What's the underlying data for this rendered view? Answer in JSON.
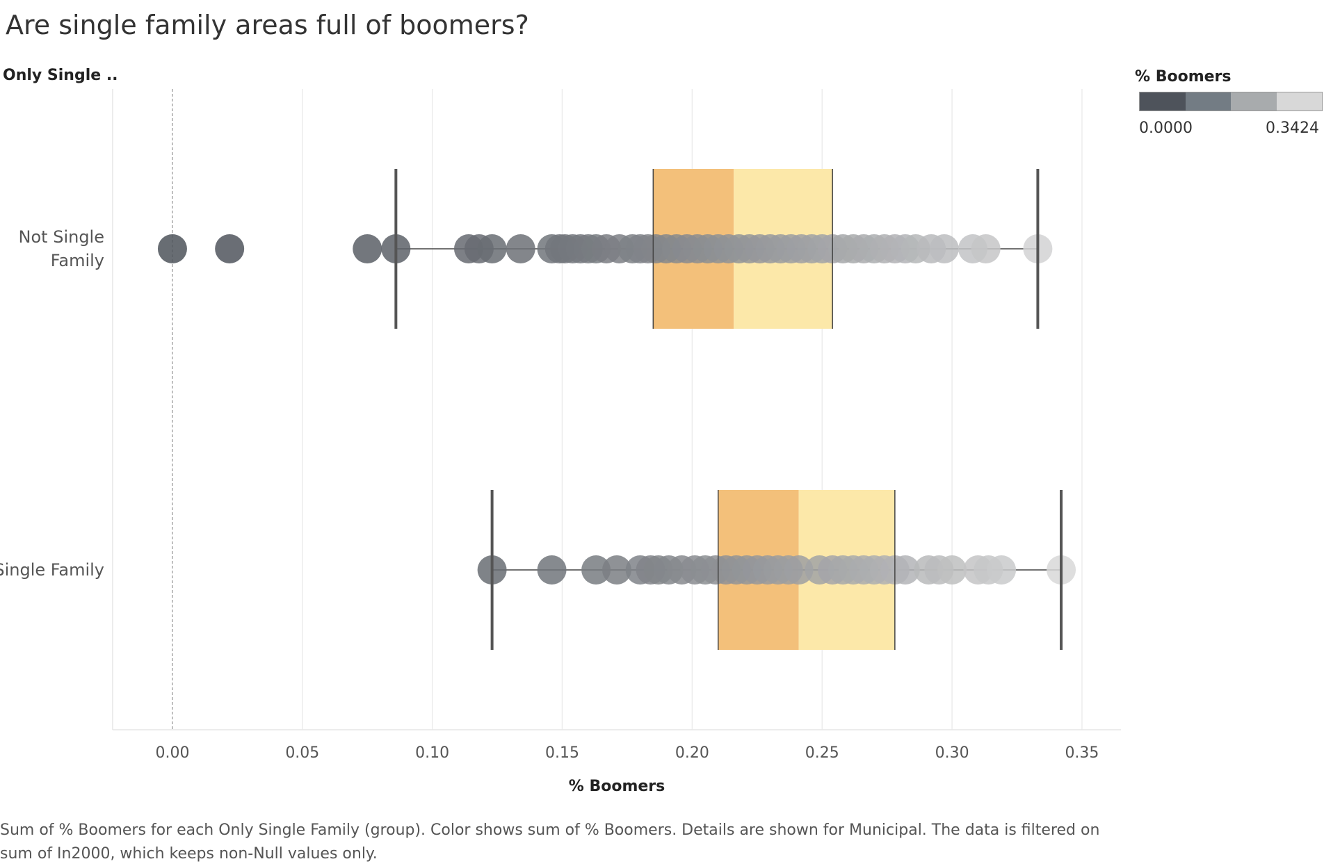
{
  "header": {
    "title": "Are single family areas full of boomers?",
    "row_header": "Only Single .."
  },
  "legend": {
    "title": "% Boomers",
    "min_label": "0.0000",
    "max_label": "0.3424",
    "ramp_colors": [
      "#4e535b",
      "#737c84",
      "#a8abad",
      "#d8d8d8"
    ]
  },
  "caption": "Sum of % Boomers for each Only Single Family (group).  Color shows sum of % Boomers.  Details are shown for Municipal. The data is filtered on sum of In2000, which keeps non-Null values only.",
  "chart_data": {
    "type": "box-and-scatter",
    "xlabel": "% Boomers",
    "xlim": [
      -0.023,
      0.365
    ],
    "x_ticks": [
      "0.00",
      "0.05",
      "0.10",
      "0.15",
      "0.20",
      "0.25",
      "0.30",
      "0.35"
    ],
    "x_tick_values": [
      0,
      0.05,
      0.1,
      0.15,
      0.2,
      0.25,
      0.3,
      0.35
    ],
    "reference_line": 0,
    "categories": [
      {
        "label_lines": [
          "Not Single",
          "Family"
        ],
        "whisker_low": 0.086,
        "q1": 0.185,
        "median": 0.216,
        "q3": 0.254,
        "whisker_high": 0.333,
        "points": [
          0.0,
          0.022,
          0.075,
          0.086,
          0.114,
          0.118,
          0.123,
          0.134,
          0.146,
          0.149,
          0.151,
          0.154,
          0.157,
          0.16,
          0.163,
          0.167,
          0.172,
          0.177,
          0.18,
          0.183,
          0.186,
          0.19,
          0.194,
          0.198,
          0.202,
          0.206,
          0.21,
          0.214,
          0.218,
          0.222,
          0.226,
          0.23,
          0.234,
          0.238,
          0.242,
          0.246,
          0.25,
          0.254,
          0.258,
          0.262,
          0.266,
          0.27,
          0.274,
          0.278,
          0.282,
          0.286,
          0.292,
          0.297,
          0.308,
          0.313,
          0.333
        ]
      },
      {
        "label_lines": [
          "Single Family"
        ],
        "whisker_low": 0.123,
        "q1": 0.21,
        "median": 0.241,
        "q3": 0.278,
        "whisker_high": 0.342,
        "points": [
          0.123,
          0.146,
          0.163,
          0.171,
          0.18,
          0.184,
          0.187,
          0.191,
          0.196,
          0.201,
          0.205,
          0.209,
          0.213,
          0.217,
          0.221,
          0.225,
          0.229,
          0.233,
          0.237,
          0.241,
          0.249,
          0.254,
          0.258,
          0.262,
          0.266,
          0.27,
          0.274,
          0.278,
          0.282,
          0.291,
          0.295,
          0.3,
          0.31,
          0.314,
          0.319,
          0.342
        ]
      }
    ],
    "colors": {
      "lower_box": "#f3c07a",
      "upper_box": "#fce8a9",
      "whisker": "#555555",
      "point_dark": "#4e535b",
      "point_light": "#d8d8d8"
    }
  }
}
